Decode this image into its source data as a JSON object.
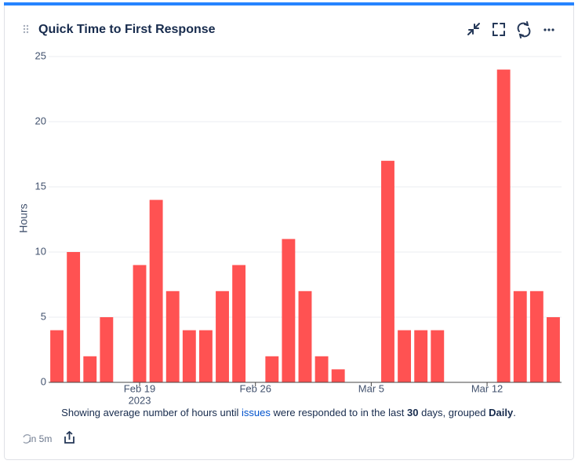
{
  "header": {
    "title": "Quick Time to First Response"
  },
  "chart_data": {
    "type": "bar",
    "y_label": "Hours",
    "x_year_label": "2023",
    "categories": [
      null,
      null,
      null,
      null,
      null,
      "Feb 19",
      null,
      null,
      null,
      null,
      null,
      null,
      "Feb 26",
      null,
      null,
      null,
      null,
      null,
      null,
      "Mar 5",
      null,
      null,
      null,
      null,
      null,
      null,
      "Mar 12",
      null,
      null,
      null,
      null
    ],
    "values": [
      4,
      10,
      2,
      5,
      0,
      9,
      14,
      7,
      4,
      4,
      7,
      9,
      0,
      2,
      11,
      7,
      2,
      1,
      0,
      0,
      17,
      4,
      4,
      4,
      0,
      0,
      0,
      24,
      7,
      7,
      5
    ],
    "color": "#ff5252",
    "ylim": [
      0,
      25
    ],
    "yticks": [
      0,
      5,
      10,
      15,
      20,
      25
    ],
    "grid": true
  },
  "caption": {
    "parts": [
      "Showing average number of hours until ",
      "issues",
      " were responded to in the last ",
      "30",
      " days, grouped ",
      "Daily",
      "."
    ]
  },
  "footer": {
    "refresh": "in 5m"
  }
}
